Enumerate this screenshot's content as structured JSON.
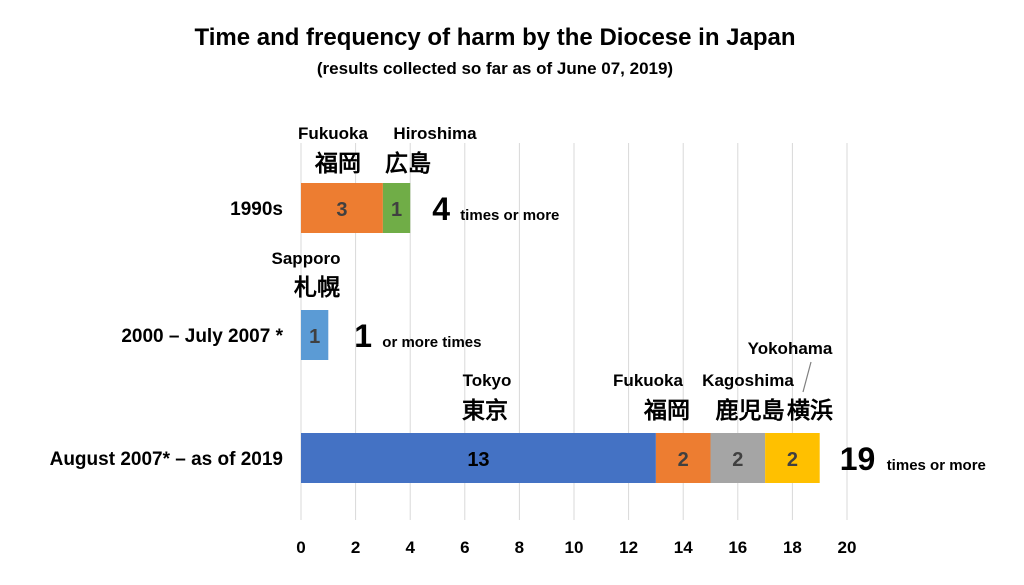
{
  "title": "Time and frequency of harm by the Diocese in Japan",
  "subtitle": "(results collected so far as of June 07, 2019)",
  "chart_data": {
    "type": "bar",
    "orientation": "horizontal",
    "stacked": true,
    "xlim": [
      0,
      20
    ],
    "x_ticks": [
      "0",
      "2",
      "4",
      "6",
      "8",
      "10",
      "12",
      "14",
      "16",
      "18",
      "20"
    ],
    "grid": "vertical",
    "categories": [
      "1990s",
      "2000 – July 2007 *",
      "August 2007* – as of 2019"
    ],
    "rows": [
      {
        "category": "1990s",
        "segments": [
          {
            "value": 3,
            "label": "3",
            "place_en": "Fukuoka",
            "place_jp": "福岡",
            "color": "#ED7D31"
          },
          {
            "value": 1,
            "label": "1",
            "place_en": "Hiroshima",
            "place_jp": "広島",
            "color": "#70AD47"
          }
        ],
        "total_value": "4",
        "total_text": "times or more"
      },
      {
        "category": "2000 – July 2007 *",
        "segments": [
          {
            "value": 1,
            "label": "1",
            "place_en": "Sapporo",
            "place_jp": "札幌",
            "color": "#5B9BD5"
          }
        ],
        "total_value": "1",
        "total_text": "or more times"
      },
      {
        "category": "August 2007* – as of 2019",
        "segments": [
          {
            "value": 13,
            "label": "13",
            "place_en": "Tokyo",
            "place_jp": "東京",
            "color": "#4472C4"
          },
          {
            "value": 2,
            "label": "2",
            "place_en": "Fukuoka",
            "place_jp": "福岡",
            "color": "#ED7D31"
          },
          {
            "value": 2,
            "label": "2",
            "place_en": "Kagoshima",
            "place_jp": "鹿児島",
            "color": "#A5A5A5"
          },
          {
            "value": 2,
            "label": "2",
            "place_en": "Yokohama",
            "place_jp": "横浜",
            "color": "#FFC000"
          }
        ],
        "total_value": "19",
        "total_text": "times or more"
      }
    ]
  }
}
